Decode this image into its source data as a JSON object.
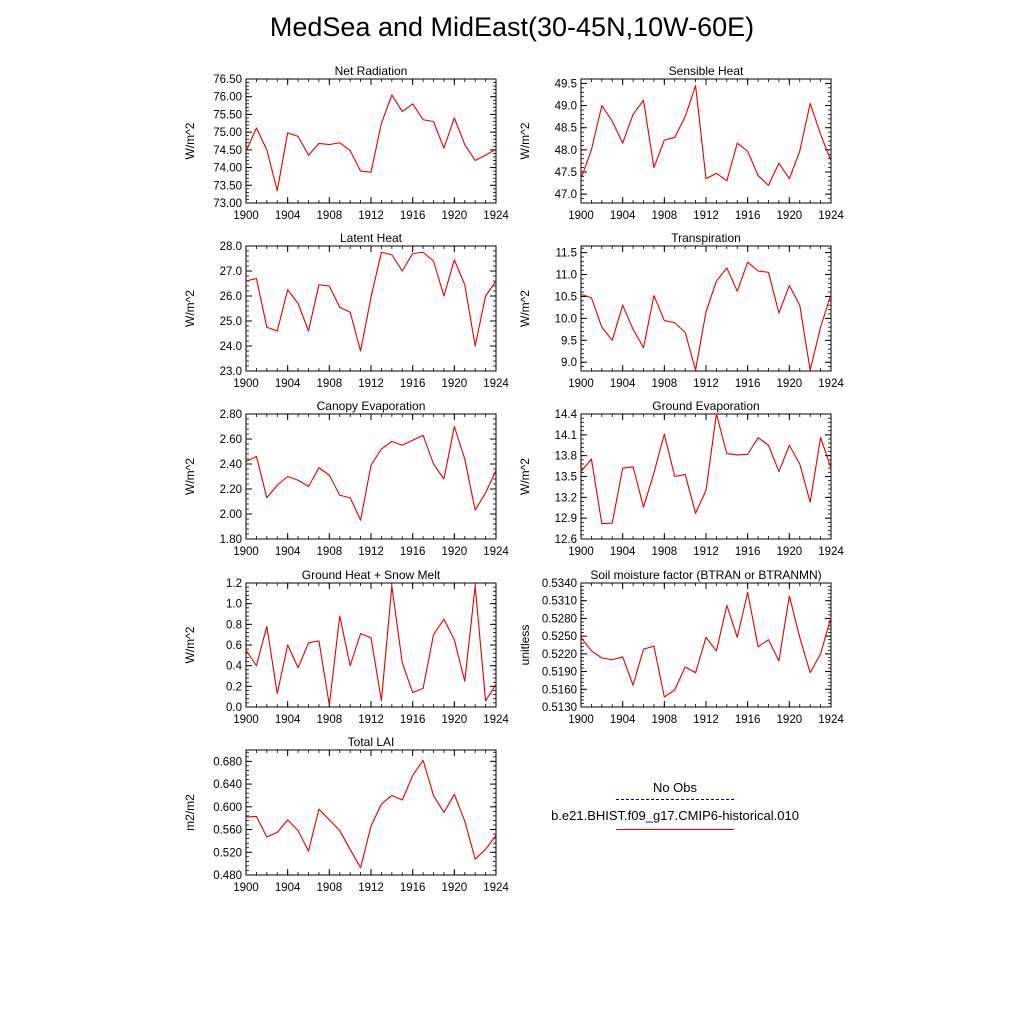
{
  "title": "MedSea and MidEast(30-45N,10W-60E)",
  "colors": {
    "model": "#e00000",
    "obs": "#00007a",
    "axis": "#000000"
  },
  "legend": {
    "obs_label": "No Obs",
    "model_label": "b.e21.BHIST.f09_g17.CMIP6-historical.010"
  },
  "chart_data": [
    {
      "type": "line",
      "title": "Net Radiation",
      "ylabel": "W/m^2",
      "xlim": [
        1900,
        1924
      ],
      "ylim": [
        73.0,
        76.5
      ],
      "decimals": 2,
      "xticks": [
        1900,
        1904,
        1908,
        1912,
        1916,
        1920,
        1924
      ],
      "yticks": [
        73.0,
        73.5,
        74.0,
        74.5,
        75.0,
        75.5,
        76.0,
        76.5
      ],
      "series": [
        {
          "x": [
            1900,
            1901,
            1902,
            1903,
            1904,
            1905,
            1906,
            1907,
            1908,
            1909,
            1910,
            1911,
            1912,
            1913,
            1914,
            1915,
            1916,
            1917,
            1918,
            1919,
            1920,
            1921,
            1922,
            1923,
            1924
          ],
          "values": [
            74.45,
            75.12,
            74.5,
            73.35,
            74.98,
            74.88,
            74.35,
            74.68,
            74.65,
            74.7,
            74.48,
            73.9,
            73.87,
            75.25,
            76.05,
            75.58,
            75.8,
            75.35,
            75.3,
            74.55,
            75.4,
            74.65,
            74.2,
            74.35,
            74.52
          ]
        }
      ]
    },
    {
      "type": "line",
      "title": "Sensible Heat",
      "ylabel": "W/m^2",
      "xlim": [
        1900,
        1924
      ],
      "ylim": [
        46.8,
        49.6
      ],
      "decimals": 1,
      "xticks": [
        1900,
        1904,
        1908,
        1912,
        1916,
        1920,
        1924
      ],
      "yticks": [
        47.0,
        47.5,
        48.0,
        48.5,
        49.0,
        49.5
      ],
      "series": [
        {
          "x": [
            1900,
            1901,
            1902,
            1903,
            1904,
            1905,
            1906,
            1907,
            1908,
            1909,
            1910,
            1911,
            1912,
            1913,
            1914,
            1915,
            1916,
            1917,
            1918,
            1919,
            1920,
            1921,
            1922,
            1923,
            1924
          ],
          "values": [
            47.35,
            48.0,
            49.0,
            48.65,
            48.15,
            48.8,
            49.12,
            47.6,
            48.22,
            48.28,
            48.75,
            49.45,
            47.35,
            47.47,
            47.3,
            48.15,
            47.97,
            47.42,
            47.2,
            47.7,
            47.35,
            47.97,
            49.05,
            48.35,
            47.75
          ]
        }
      ]
    },
    {
      "type": "line",
      "title": "Latent Heat",
      "ylabel": "W/m^2",
      "xlim": [
        1900,
        1924
      ],
      "ylim": [
        23.0,
        28.0
      ],
      "decimals": 1,
      "xticks": [
        1900,
        1904,
        1908,
        1912,
        1916,
        1920,
        1924
      ],
      "yticks": [
        23.0,
        24.0,
        25.0,
        26.0,
        27.0,
        28.0
      ],
      "series": [
        {
          "x": [
            1900,
            1901,
            1902,
            1903,
            1904,
            1905,
            1906,
            1907,
            1908,
            1909,
            1910,
            1911,
            1912,
            1913,
            1914,
            1915,
            1916,
            1917,
            1918,
            1919,
            1920,
            1921,
            1922,
            1923,
            1924
          ],
          "values": [
            26.6,
            26.7,
            24.75,
            24.6,
            26.25,
            25.7,
            24.6,
            26.45,
            26.4,
            25.55,
            25.35,
            23.8,
            25.95,
            27.75,
            27.65,
            27.0,
            27.7,
            27.75,
            27.4,
            26.0,
            27.45,
            26.45,
            24.0,
            26.0,
            26.6
          ]
        }
      ]
    },
    {
      "type": "line",
      "title": "Transpiration",
      "ylabel": "W/m^2",
      "xlim": [
        1900,
        1924
      ],
      "ylim": [
        8.8,
        11.65
      ],
      "decimals": 1,
      "xticks": [
        1900,
        1904,
        1908,
        1912,
        1916,
        1920,
        1924
      ],
      "yticks": [
        9.0,
        9.5,
        10.0,
        10.5,
        11.0,
        11.5
      ],
      "series": [
        {
          "x": [
            1900,
            1901,
            1902,
            1903,
            1904,
            1905,
            1906,
            1907,
            1908,
            1909,
            1910,
            1911,
            1912,
            1913,
            1914,
            1915,
            1916,
            1917,
            1918,
            1919,
            1920,
            1921,
            1922,
            1923,
            1924
          ],
          "values": [
            10.55,
            10.47,
            9.8,
            9.5,
            10.3,
            9.75,
            9.33,
            10.52,
            9.95,
            9.9,
            9.68,
            8.82,
            10.15,
            10.85,
            11.15,
            10.62,
            11.28,
            11.08,
            11.05,
            10.12,
            10.75,
            10.3,
            8.82,
            9.8,
            10.55
          ]
        }
      ]
    },
    {
      "type": "line",
      "title": "Canopy Evaporation",
      "ylabel": "W/m^2",
      "xlim": [
        1900,
        1924
      ],
      "ylim": [
        1.8,
        2.8
      ],
      "decimals": 2,
      "xticks": [
        1900,
        1904,
        1908,
        1912,
        1916,
        1920,
        1924
      ],
      "yticks": [
        1.8,
        2.0,
        2.2,
        2.4,
        2.6,
        2.8
      ],
      "series": [
        {
          "x": [
            1900,
            1901,
            1902,
            1903,
            1904,
            1905,
            1906,
            1907,
            1908,
            1909,
            1910,
            1911,
            1912,
            1913,
            1914,
            1915,
            1916,
            1917,
            1918,
            1919,
            1920,
            1921,
            1922,
            1923,
            1924
          ],
          "values": [
            2.42,
            2.46,
            2.13,
            2.23,
            2.3,
            2.27,
            2.22,
            2.37,
            2.31,
            2.15,
            2.13,
            1.95,
            2.39,
            2.52,
            2.58,
            2.55,
            2.59,
            2.63,
            2.4,
            2.28,
            2.7,
            2.44,
            2.03,
            2.17,
            2.35
          ]
        }
      ]
    },
    {
      "type": "line",
      "title": "Ground Evaporation",
      "ylabel": "W/m^2",
      "xlim": [
        1900,
        1924
      ],
      "ylim": [
        12.6,
        14.4
      ],
      "decimals": 1,
      "xticks": [
        1900,
        1904,
        1908,
        1912,
        1916,
        1920,
        1924
      ],
      "yticks": [
        12.6,
        12.9,
        13.2,
        13.5,
        13.8,
        14.1,
        14.4
      ],
      "series": [
        {
          "x": [
            1900,
            1901,
            1902,
            1903,
            1904,
            1905,
            1906,
            1907,
            1908,
            1909,
            1910,
            1911,
            1912,
            1913,
            1914,
            1915,
            1916,
            1917,
            1918,
            1919,
            1920,
            1921,
            1922,
            1923,
            1924
          ],
          "values": [
            13.57,
            13.75,
            12.82,
            12.83,
            13.62,
            13.64,
            13.06,
            13.55,
            14.11,
            13.5,
            13.53,
            12.97,
            13.3,
            14.4,
            13.83,
            13.81,
            13.82,
            14.06,
            13.95,
            13.57,
            13.95,
            13.68,
            13.13,
            14.06,
            13.62
          ]
        }
      ]
    },
    {
      "type": "line",
      "title": "Ground Heat + Snow Melt",
      "ylabel": "W/m^2",
      "xlim": [
        1900,
        1924
      ],
      "ylim": [
        0.0,
        1.2
      ],
      "decimals": 1,
      "xticks": [
        1900,
        1904,
        1908,
        1912,
        1916,
        1920,
        1924
      ],
      "yticks": [
        0.0,
        0.2,
        0.4,
        0.6,
        0.8,
        1.0,
        1.2
      ],
      "series": [
        {
          "x": [
            1900,
            1901,
            1902,
            1903,
            1904,
            1905,
            1906,
            1907,
            1908,
            1909,
            1910,
            1911,
            1912,
            1913,
            1914,
            1915,
            1916,
            1917,
            1918,
            1919,
            1920,
            1921,
            1922,
            1923,
            1924
          ],
          "values": [
            0.55,
            0.4,
            0.78,
            0.13,
            0.6,
            0.38,
            0.62,
            0.64,
            0.02,
            0.88,
            0.4,
            0.71,
            0.67,
            0.06,
            1.17,
            0.43,
            0.14,
            0.18,
            0.7,
            0.85,
            0.65,
            0.25,
            1.17,
            0.06,
            0.22
          ]
        }
      ]
    },
    {
      "type": "line",
      "title": "Soil moisture factor (BTRAN or BTRANMN)",
      "ylabel": "unitless",
      "xlim": [
        1900,
        1924
      ],
      "ylim": [
        0.513,
        0.534
      ],
      "decimals": 4,
      "xticks": [
        1900,
        1904,
        1908,
        1912,
        1916,
        1920,
        1924
      ],
      "yticks": [
        0.513,
        0.516,
        0.519,
        0.522,
        0.525,
        0.528,
        0.531,
        0.534
      ],
      "series": [
        {
          "x": [
            1900,
            1901,
            1902,
            1903,
            1904,
            1905,
            1906,
            1907,
            1908,
            1909,
            1910,
            1911,
            1912,
            1913,
            1914,
            1915,
            1916,
            1917,
            1918,
            1919,
            1920,
            1921,
            1922,
            1923,
            1924
          ],
          "values": [
            0.5248,
            0.5225,
            0.5213,
            0.521,
            0.5215,
            0.5167,
            0.5228,
            0.5233,
            0.5147,
            0.5159,
            0.5198,
            0.5188,
            0.5248,
            0.5225,
            0.5302,
            0.5248,
            0.5324,
            0.5232,
            0.5244,
            0.5208,
            0.5318,
            0.5248,
            0.5188,
            0.522,
            0.5282
          ]
        }
      ]
    },
    {
      "type": "line",
      "title": "Total LAI",
      "ylabel": "m2/m2",
      "xlim": [
        1900,
        1924
      ],
      "ylim": [
        0.48,
        0.7
      ],
      "decimals": 3,
      "xticks": [
        1900,
        1904,
        1908,
        1912,
        1916,
        1920,
        1924
      ],
      "yticks": [
        0.48,
        0.52,
        0.56,
        0.6,
        0.64,
        0.68
      ],
      "series": [
        {
          "x": [
            1900,
            1901,
            1902,
            1903,
            1904,
            1905,
            1906,
            1907,
            1908,
            1909,
            1910,
            1911,
            1912,
            1913,
            1914,
            1915,
            1916,
            1917,
            1918,
            1919,
            1920,
            1921,
            1922,
            1923,
            1924
          ],
          "values": [
            0.582,
            0.583,
            0.547,
            0.555,
            0.577,
            0.558,
            0.522,
            0.596,
            0.577,
            0.558,
            0.525,
            0.493,
            0.566,
            0.605,
            0.62,
            0.612,
            0.655,
            0.682,
            0.62,
            0.59,
            0.622,
            0.575,
            0.508,
            0.525,
            0.55
          ]
        }
      ]
    }
  ]
}
